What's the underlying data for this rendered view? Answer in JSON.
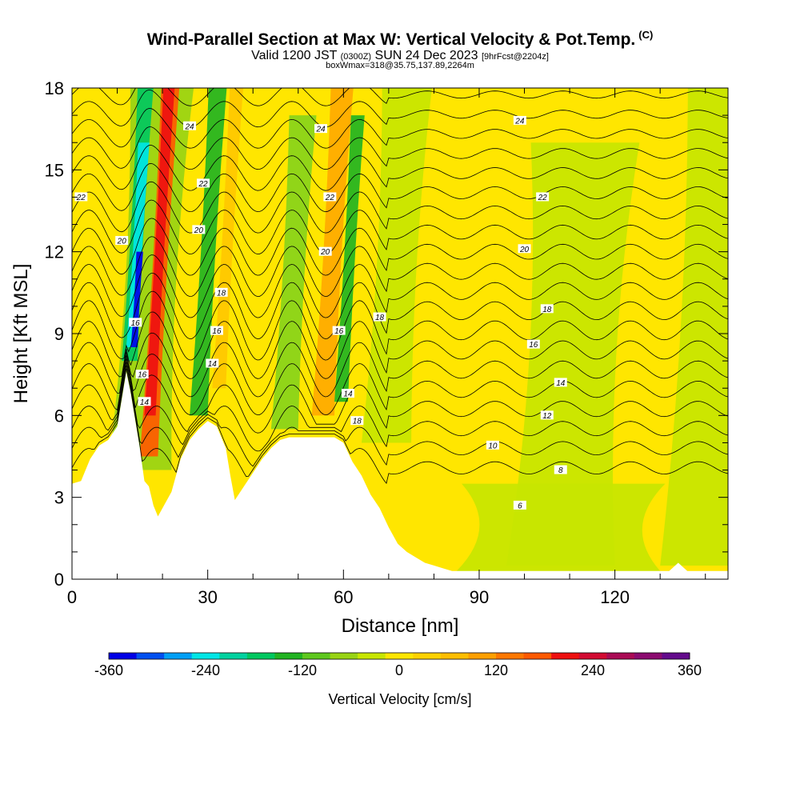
{
  "header": {
    "title": "Wind-Parallel Section at Max W: Vertical Velocity & Pot.Temp.",
    "copyright": "(C)",
    "valid_a": "Valid 1200 JST ",
    "valid_b": "(0300Z)",
    "valid_c": " SUN 24 Dec 2023 ",
    "valid_d": "[9hrFcst@2204z]",
    "box_info": "boxWmax=318@35.75,137.89,2264m"
  },
  "chart_data": {
    "type": "heatmap",
    "xlabel": "Distance [nm]",
    "ylabel": "Height [Kft MSL]",
    "xlim": [
      0,
      145
    ],
    "ylim": [
      0,
      18
    ],
    "x_ticks": [
      0,
      30,
      60,
      90,
      120
    ],
    "y_ticks": [
      0,
      3,
      6,
      9,
      12,
      15,
      18
    ],
    "background_fill": "#ffe600",
    "terrain_profile": [
      [
        0,
        3.5
      ],
      [
        2,
        3.6
      ],
      [
        4,
        4.4
      ],
      [
        6,
        4.9
      ],
      [
        8,
        5.1
      ],
      [
        10,
        5.6
      ],
      [
        12,
        7.6
      ],
      [
        13,
        6.8
      ],
      [
        14,
        5.8
      ],
      [
        15,
        4.8
      ],
      [
        16,
        3.6
      ],
      [
        17,
        3.4
      ],
      [
        18,
        2.7
      ],
      [
        19,
        2.3
      ],
      [
        20,
        2.6
      ],
      [
        22,
        3.2
      ],
      [
        24,
        4.4
      ],
      [
        26,
        5.1
      ],
      [
        28,
        5.5
      ],
      [
        30,
        5.8
      ],
      [
        32,
        5.6
      ],
      [
        34,
        4.8
      ],
      [
        35,
        3.8
      ],
      [
        36,
        2.9
      ],
      [
        38,
        3.4
      ],
      [
        40,
        3.9
      ],
      [
        42,
        4.4
      ],
      [
        44,
        4.8
      ],
      [
        46,
        5.1
      ],
      [
        48,
        5.2
      ],
      [
        52,
        5.2
      ],
      [
        58,
        5.2
      ],
      [
        60,
        5.0
      ],
      [
        62,
        4.3
      ],
      [
        64,
        3.8
      ],
      [
        66,
        3.1
      ],
      [
        68,
        2.6
      ],
      [
        70,
        1.9
      ],
      [
        72,
        1.3
      ],
      [
        74,
        1.0
      ],
      [
        76,
        0.8
      ],
      [
        78,
        0.6
      ],
      [
        80,
        0.5
      ],
      [
        82,
        0.4
      ],
      [
        84,
        0.3
      ],
      [
        100,
        0.3
      ],
      [
        132,
        0.3
      ],
      [
        134,
        0.6
      ],
      [
        136,
        0.3
      ],
      [
        145,
        0.3
      ]
    ],
    "velocity_bands": [
      {
        "x0": 8,
        "x1": 22,
        "ybot": 4,
        "ytop": 18,
        "value": -60,
        "color": "#99d414"
      },
      {
        "x0": 11,
        "x1": 14.5,
        "ybot": 8,
        "ytop": 18,
        "value": -180,
        "color": "#00c860"
      },
      {
        "x0": 12,
        "x1": 14.5,
        "ybot": 8.5,
        "ytop": 16,
        "value": -300,
        "color": "#00e6e6"
      },
      {
        "x0": 13,
        "x1": 14.5,
        "ybot": 8.5,
        "ytop": 12,
        "value": -360,
        "color": "#0000e6"
      },
      {
        "x0": 15,
        "x1": 19,
        "ybot": 4.5,
        "ytop": 18,
        "value": 180,
        "color": "#ff5a00"
      },
      {
        "x0": 16,
        "x1": 18.5,
        "ybot": 6,
        "ytop": 18,
        "value": 240,
        "color": "#ee1010"
      },
      {
        "x0": 26,
        "x1": 30,
        "ybot": 6,
        "ytop": 18,
        "value": -120,
        "color": "#22b422"
      },
      {
        "x0": 31,
        "x1": 34,
        "ybot": 7,
        "ytop": 18,
        "value": 60,
        "color": "#ffc800"
      },
      {
        "x0": 44,
        "x1": 50,
        "ybot": 5.5,
        "ytop": 17,
        "value": -60,
        "color": "#88d41a"
      },
      {
        "x0": 53,
        "x1": 58,
        "ybot": 6,
        "ytop": 18,
        "value": 120,
        "color": "#ffaa00"
      },
      {
        "x0": 58,
        "x1": 61,
        "ybot": 6.5,
        "ytop": 17,
        "value": -120,
        "color": "#22b422"
      },
      {
        "x0": 64,
        "x1": 75,
        "ybot": 5,
        "ytop": 18,
        "value": -30,
        "color": "#c8e600"
      },
      {
        "x0": 96,
        "x1": 120,
        "ybot": 0.5,
        "ytop": 16,
        "value": -30,
        "color": "#c8e600"
      },
      {
        "x0": 130,
        "x1": 145,
        "ybot": 0.5,
        "ytop": 18,
        "value": -30,
        "color": "#c8e600"
      },
      {
        "x0": 85,
        "x1": 130,
        "ybot": 0.3,
        "ytop": 3.5,
        "value": -30,
        "color": "#c8e600"
      }
    ],
    "theta_contours": [
      4,
      6,
      8,
      10,
      12,
      14,
      16,
      18,
      20,
      22,
      24
    ],
    "contour_labels": [
      {
        "text": "24",
        "x": 26,
        "y": 16.6
      },
      {
        "text": "24",
        "x": 55,
        "y": 16.5
      },
      {
        "text": "24",
        "x": 99,
        "y": 16.8
      },
      {
        "text": "22",
        "x": 2,
        "y": 14
      },
      {
        "text": "22",
        "x": 29,
        "y": 14.5
      },
      {
        "text": "22",
        "x": 57,
        "y": 14
      },
      {
        "text": "22",
        "x": 104,
        "y": 14
      },
      {
        "text": "20",
        "x": 11,
        "y": 12.4
      },
      {
        "text": "20",
        "x": 28,
        "y": 12.8
      },
      {
        "text": "20",
        "x": 56,
        "y": 12
      },
      {
        "text": "20",
        "x": 100,
        "y": 12.1
      },
      {
        "text": "18",
        "x": 33,
        "y": 10.5
      },
      {
        "text": "18",
        "x": 68,
        "y": 9.6
      },
      {
        "text": "18",
        "x": 105,
        "y": 9.9
      },
      {
        "text": "18",
        "x": 63,
        "y": 5.8
      },
      {
        "text": "16",
        "x": 14,
        "y": 9.4
      },
      {
        "text": "16",
        "x": 32,
        "y": 9.1
      },
      {
        "text": "16",
        "x": 59,
        "y": 9.1
      },
      {
        "text": "16",
        "x": 102,
        "y": 8.6
      },
      {
        "text": "16",
        "x": 15.5,
        "y": 7.5
      },
      {
        "text": "14",
        "x": 31,
        "y": 7.9
      },
      {
        "text": "14",
        "x": 61,
        "y": 6.8
      },
      {
        "text": "14",
        "x": 108,
        "y": 7.2
      },
      {
        "text": "14",
        "x": 16,
        "y": 6.5
      },
      {
        "text": "12",
        "x": 105,
        "y": 6.0
      },
      {
        "text": "10",
        "x": 93,
        "y": 4.9
      },
      {
        "text": "8",
        "x": 108,
        "y": 4.0
      },
      {
        "text": "6",
        "x": 99,
        "y": 2.7
      }
    ],
    "colorbar": {
      "label": "Vertical Velocity [cm/s]",
      "range": [
        -360,
        360
      ],
      "ticks": [
        "-360",
        "-240",
        "-120",
        "0",
        "120",
        "240",
        "360"
      ],
      "colors": [
        "#0000e6",
        "#0050f0",
        "#00a0f5",
        "#00e6e6",
        "#00d2a0",
        "#00c860",
        "#22b422",
        "#5fc81e",
        "#99d414",
        "#c8e600",
        "#ffe600",
        "#ffd200",
        "#ffbe00",
        "#ffa000",
        "#ff7800",
        "#ff5a00",
        "#ee1010",
        "#d20a32",
        "#aa0a55",
        "#8c0a70",
        "#640a8c"
      ]
    }
  }
}
